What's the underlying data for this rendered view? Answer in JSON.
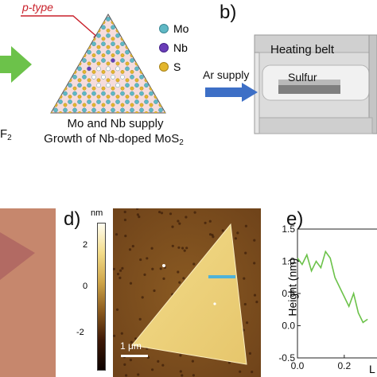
{
  "panel_labels": {
    "b": "b)",
    "d": "d)",
    "e": "e)"
  },
  "crystal": {
    "type_label": "p-type",
    "legend": [
      {
        "name": "Mo",
        "color": "#5fb8c5"
      },
      {
        "name": "Nb",
        "color": "#6a3db8"
      },
      {
        "name": "S",
        "color": "#e3b62d"
      }
    ],
    "caption_line1": "Mo and Nb supply",
    "caption_line2_main": "Growth of Nb-doped MoS",
    "caption_line2_sub": "2",
    "left_cut_text": "F",
    "left_cut_sub": "2"
  },
  "furnace": {
    "heating_label": "Heating belt",
    "ar_label": "Ar supply",
    "sulfur_label": "Sulfur"
  },
  "afm": {
    "unit": "nm",
    "colorbar_ticks": [
      "2",
      "0",
      "-2"
    ],
    "scalebar": "1 μm"
  },
  "height_plot": {
    "ylabel": "Height (nm)",
    "yticks": [
      "1.5",
      "1.0",
      "0.5",
      "0.0",
      "-0.5"
    ],
    "xticks": [
      "0.0",
      "0.2"
    ],
    "xlabel_cut": "L"
  },
  "chart_data": {
    "type": "line",
    "ylabel": "Height (nm)",
    "ylim": [
      -0.5,
      1.5
    ],
    "x": [
      0.0,
      0.02,
      0.04,
      0.06,
      0.08,
      0.1,
      0.12,
      0.14,
      0.16,
      0.18,
      0.2,
      0.22,
      0.24,
      0.26,
      0.28,
      0.3
    ],
    "series": [
      {
        "values": [
          1.05,
          0.95,
          1.1,
          0.85,
          1.0,
          0.9,
          1.15,
          1.05,
          0.75,
          0.6,
          0.45,
          0.3,
          0.5,
          0.2,
          0.05,
          0.1
        ],
        "color": "#6cc24a"
      }
    ],
    "grid": false
  }
}
